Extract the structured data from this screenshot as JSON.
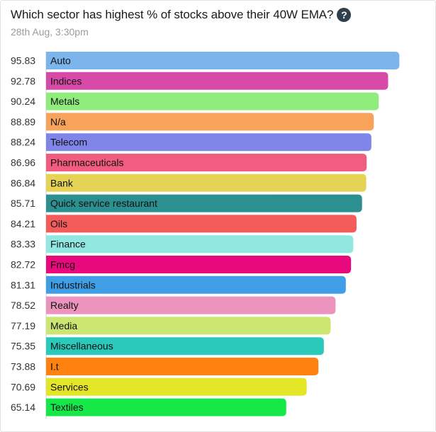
{
  "header": {
    "title": "Which sector has highest % of stocks above their 40W EMA?",
    "help_icon": "question-circle-icon",
    "timestamp": "28th Aug, 3:30pm"
  },
  "chart_data": {
    "type": "bar",
    "orientation": "horizontal",
    "categories": [
      "Auto",
      "Indices",
      "Metals",
      "N/a",
      "Telecom",
      "Pharmaceuticals",
      "Bank",
      "Quick service restaurant",
      "Oils",
      "Finance",
      "Fmcg",
      "Industrials",
      "Realty",
      "Media",
      "Miscellaneous",
      "I.t",
      "Services",
      "Textiles"
    ],
    "values": [
      95.83,
      92.78,
      90.24,
      88.89,
      88.24,
      86.96,
      86.84,
      85.71,
      84.21,
      83.33,
      82.72,
      81.31,
      78.52,
      77.19,
      75.35,
      73.88,
      70.69,
      65.14
    ],
    "colors": [
      "#7cb5ec",
      "#d84aa8",
      "#90ed7d",
      "#f7a35c",
      "#8085e9",
      "#f15c80",
      "#e4d354",
      "#2b908f",
      "#f45b5b",
      "#91e8e1",
      "#e80a7c",
      "#3f9ee6",
      "#ec94be",
      "#cbe672",
      "#2ac9b9",
      "#ff8110",
      "#e3e627",
      "#16e84a"
    ],
    "xlim": [
      0,
      100
    ],
    "grid": false,
    "legend": "none"
  }
}
